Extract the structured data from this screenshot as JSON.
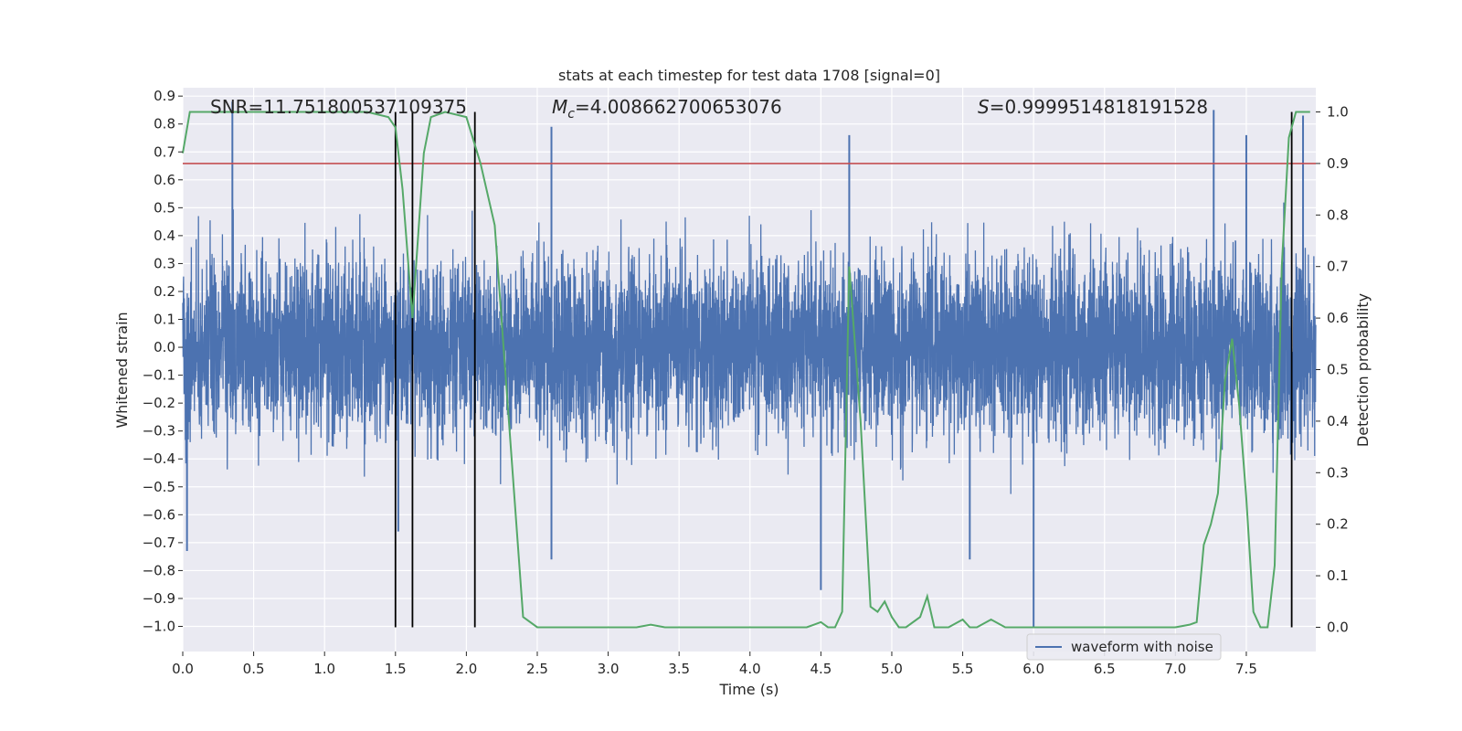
{
  "chart_data": {
    "type": "line",
    "title": "stats at each timestep for test data 1708 [signal=0]",
    "xlabel": "Time (s)",
    "ylabel": "Whitened strain",
    "y2label": "Detection probability",
    "xlim": [
      0.0,
      7.99
    ],
    "ylim": [
      -1.09,
      0.93
    ],
    "y2lim": [
      -0.047,
      1.047
    ],
    "xticks": [
      "0.0",
      "0.5",
      "1.0",
      "1.5",
      "2.0",
      "2.5",
      "3.0",
      "3.5",
      "4.0",
      "4.5",
      "5.0",
      "5.5",
      "6.0",
      "6.5",
      "7.0",
      "7.5"
    ],
    "xtick_values": [
      0.0,
      0.5,
      1.0,
      1.5,
      2.0,
      2.5,
      3.0,
      3.5,
      4.0,
      4.5,
      5.0,
      5.5,
      6.0,
      6.5,
      7.0,
      7.5
    ],
    "yticks": [
      "−1.0",
      "−0.9",
      "−0.8",
      "−0.7",
      "−0.6",
      "−0.5",
      "−0.4",
      "−0.3",
      "−0.2",
      "−0.1",
      "0.0",
      "0.1",
      "0.2",
      "0.3",
      "0.4",
      "0.5",
      "0.6",
      "0.7",
      "0.8",
      "0.9"
    ],
    "ytick_values": [
      -1.0,
      -0.9,
      -0.8,
      -0.7,
      -0.6,
      -0.5,
      -0.4,
      -0.3,
      -0.2,
      -0.1,
      0.0,
      0.1,
      0.2,
      0.3,
      0.4,
      0.5,
      0.6,
      0.7,
      0.8,
      0.9
    ],
    "y2ticks": [
      "0.0",
      "0.1",
      "0.2",
      "0.3",
      "0.4",
      "0.5",
      "0.6",
      "0.7",
      "0.8",
      "0.9",
      "1.0"
    ],
    "y2tick_values": [
      0.0,
      0.1,
      0.2,
      0.3,
      0.4,
      0.5,
      0.6,
      0.7,
      0.8,
      0.9,
      1.0
    ],
    "annotations": {
      "snr": "SNR=11.751800537109375",
      "mc_symbol": "M",
      "mc_sub": "c",
      "mc_value": "=4.008662700653076",
      "s_symbol": "S",
      "s_value": "=0.9999514818191528"
    },
    "legend": {
      "label": "waveform with noise",
      "position": "lower-right"
    },
    "series": [
      {
        "name": "waveform with noise",
        "axis": "left",
        "color": "#4c72b0",
        "noise_envelope_sigma": 0.22,
        "notable_peaks": [
          {
            "x": 0.03,
            "y": -0.73
          },
          {
            "x": 0.35,
            "y": 0.88
          },
          {
            "x": 1.52,
            "y": -0.66
          },
          {
            "x": 2.6,
            "y": 0.79
          },
          {
            "x": 2.6,
            "y": -0.76
          },
          {
            "x": 4.5,
            "y": -0.87
          },
          {
            "x": 4.7,
            "y": 0.76
          },
          {
            "x": 5.55,
            "y": -0.76
          },
          {
            "x": 6.0,
            "y": -1.0
          },
          {
            "x": 7.27,
            "y": 0.85
          },
          {
            "x": 7.5,
            "y": 0.76
          },
          {
            "x": 7.9,
            "y": 0.83
          }
        ]
      },
      {
        "name": "detection probability",
        "axis": "right",
        "color": "#55a868",
        "x": [
          0.0,
          0.05,
          0.1,
          0.2,
          0.5,
          1.0,
          1.3,
          1.45,
          1.5,
          1.55,
          1.62,
          1.7,
          1.75,
          1.85,
          2.0,
          2.1,
          2.2,
          2.3,
          2.4,
          2.5,
          2.8,
          3.0,
          3.2,
          3.3,
          3.4,
          3.6,
          3.8,
          4.0,
          4.2,
          4.4,
          4.5,
          4.55,
          4.6,
          4.65,
          4.7,
          4.78,
          4.85,
          4.9,
          4.95,
          5.0,
          5.05,
          5.1,
          5.2,
          5.25,
          5.3,
          5.35,
          5.4,
          5.5,
          5.55,
          5.6,
          5.7,
          5.8,
          5.9,
          6.0,
          6.1,
          6.3,
          6.5,
          6.8,
          7.0,
          7.1,
          7.15,
          7.2,
          7.25,
          7.3,
          7.35,
          7.4,
          7.45,
          7.5,
          7.55,
          7.6,
          7.65,
          7.7,
          7.75,
          7.8,
          7.85,
          7.87,
          7.9,
          7.95
        ],
        "values": [
          0.92,
          1.0,
          1.0,
          1.0,
          1.0,
          1.0,
          1.0,
          0.99,
          0.97,
          0.85,
          0.6,
          0.92,
          0.99,
          1.0,
          0.99,
          0.9,
          0.78,
          0.4,
          0.02,
          0.0,
          0.0,
          0.0,
          0.0,
          0.005,
          0.0,
          0.0,
          0.0,
          0.0,
          0.0,
          0.0,
          0.01,
          0.0,
          0.0,
          0.03,
          0.7,
          0.4,
          0.04,
          0.03,
          0.05,
          0.02,
          0.0,
          0.0,
          0.02,
          0.06,
          0.0,
          0.0,
          0.0,
          0.015,
          0.0,
          0.0,
          0.015,
          0.0,
          0.0,
          0.0,
          0.0,
          0.0,
          0.0,
          0.0,
          0.0,
          0.005,
          0.01,
          0.16,
          0.2,
          0.26,
          0.48,
          0.56,
          0.43,
          0.25,
          0.03,
          0.0,
          0.0,
          0.12,
          0.7,
          0.95,
          1.0,
          1.0,
          1.0,
          1.0
        ]
      }
    ],
    "threshold_line": {
      "value": 0.9,
      "axis": "right",
      "color": "#c44e52"
    },
    "vertical_markers": {
      "x": [
        1.5,
        1.62,
        2.06,
        7.82
      ],
      "y2_top": 1.0,
      "y2_bottom": 0.0,
      "color": "#000000"
    }
  }
}
